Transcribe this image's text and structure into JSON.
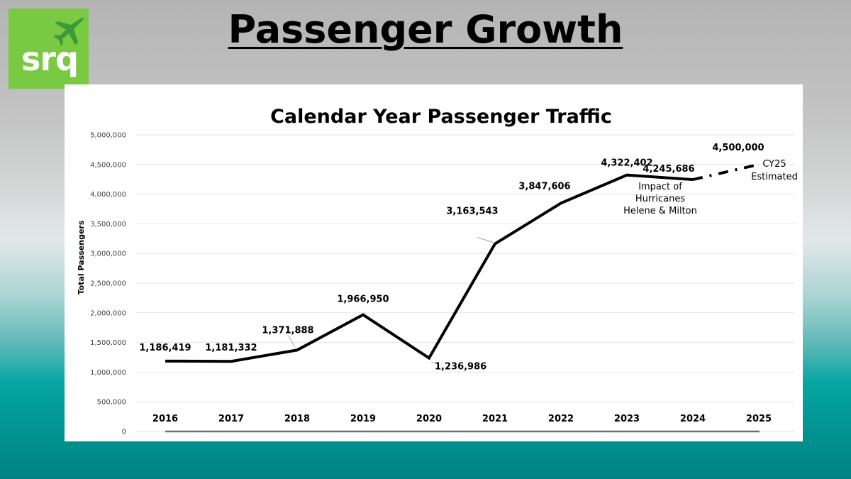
{
  "logo": {
    "text": "srq",
    "icon": "airplane-icon",
    "color": "#7ac943",
    "icon_color": "#3a9a3a"
  },
  "page": {
    "title": "Passenger Growth"
  },
  "chart_data": {
    "type": "line",
    "title": "Calendar Year Passenger Traffic",
    "xlabel": "",
    "ylabel": "Total Passengers",
    "categories": [
      "2016",
      "2017",
      "2018",
      "2019",
      "2020",
      "2021",
      "2022",
      "2023",
      "2024",
      "2025"
    ],
    "series": [
      {
        "name": "Total Passengers",
        "values": [
          1186419,
          1181332,
          1371888,
          1966950,
          1236986,
          3163543,
          3847606,
          4322402,
          4245686,
          4500000
        ],
        "labels": [
          "1,186,419",
          "1,181,332",
          "1,371,888",
          "1,966,950",
          "1,236,986",
          "3,163,543",
          "3,847,606",
          "4,322,402",
          "4,245,686",
          "4,500,000"
        ],
        "estimated_from_index": 8,
        "color": "#000000"
      }
    ],
    "ylim": [
      0,
      5000000
    ],
    "yticks": [
      0,
      500000,
      1000000,
      1500000,
      2000000,
      2500000,
      3000000,
      3500000,
      4000000,
      4500000,
      5000000
    ],
    "ytick_labels": [
      "0",
      "500,000",
      "1,000,000",
      "1,500,000",
      "2,000,000",
      "2,500,000",
      "3,000,000",
      "3,500,000",
      "4,000,000",
      "4,500,000",
      "5,000,000"
    ],
    "grid": true,
    "legend": "none",
    "annotations": [
      {
        "text": [
          "Impact of",
          "Hurricanes",
          "Helene & Milton"
        ],
        "near": "2024"
      },
      {
        "text": [
          "CY25",
          "Estimated"
        ],
        "near": "2025"
      }
    ]
  }
}
